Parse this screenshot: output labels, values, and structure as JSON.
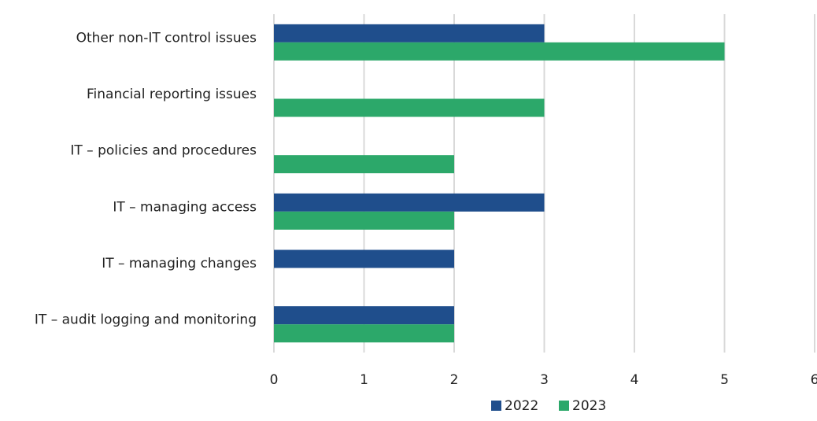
{
  "chart_data": {
    "type": "bar",
    "orientation": "horizontal",
    "categories": [
      "Other non-IT control issues",
      "Financial reporting issues",
      "IT – policies and procedures",
      "IT – managing access",
      "IT – managing changes",
      "IT – audit logging and monitoring"
    ],
    "series": [
      {
        "name": "2022",
        "color": "#1f4e8c",
        "values": [
          3,
          0,
          0,
          3,
          2,
          2
        ]
      },
      {
        "name": "2023",
        "color": "#2ca86a",
        "values": [
          5,
          3,
          2,
          2,
          0,
          2
        ]
      }
    ],
    "xlim": [
      0,
      6
    ],
    "xticks": [
      "0",
      "1",
      "2",
      "3",
      "4",
      "5",
      "6"
    ],
    "grid": "vertical",
    "gridline_color": "#d9d9d9",
    "legend_position": "bottom-center",
    "title": "",
    "xlabel": "",
    "ylabel": ""
  }
}
